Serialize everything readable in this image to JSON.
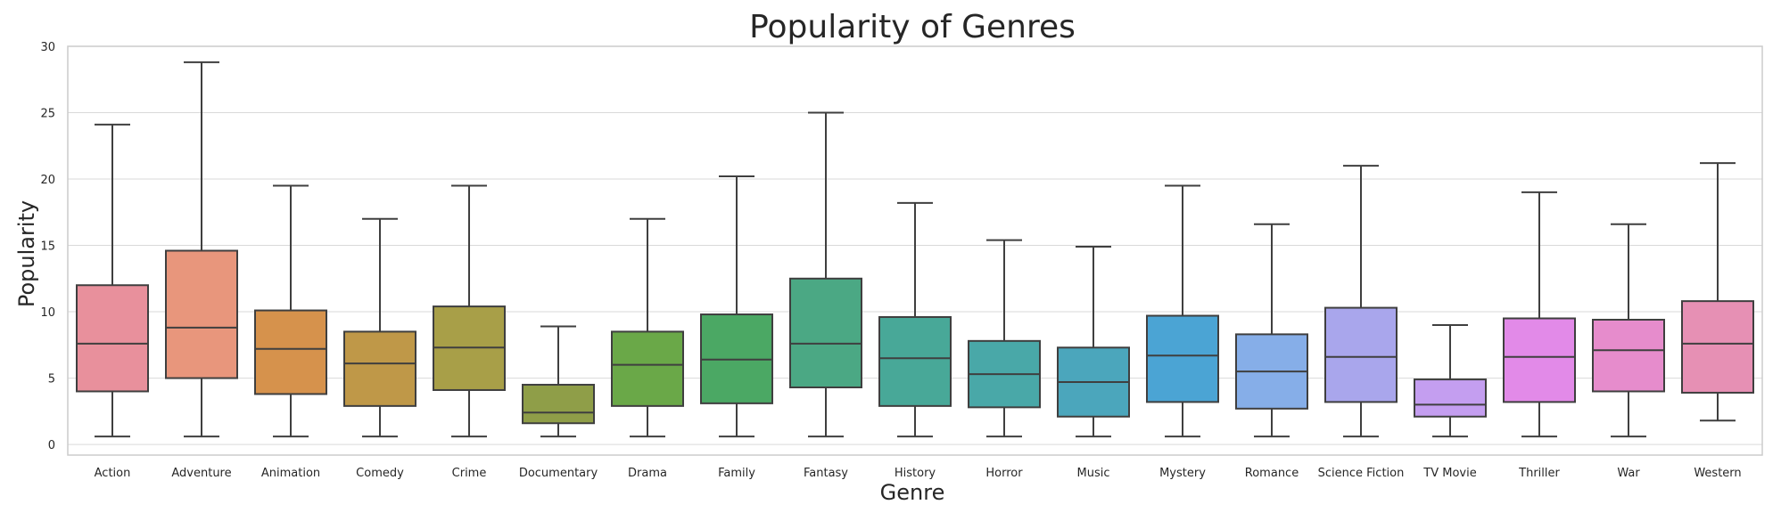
{
  "chart_data": {
    "type": "box",
    "title": "Popularity of Genres",
    "xlabel": "Genre",
    "ylabel": "Popularity",
    "ylim": [
      -0.8,
      30.0
    ],
    "yticks": [
      0,
      5,
      10,
      15,
      20,
      25,
      30
    ],
    "grid": true,
    "categories": [
      "Action",
      "Adventure",
      "Animation",
      "Comedy",
      "Crime",
      "Documentary",
      "Drama",
      "Family",
      "Fantasy",
      "History",
      "Horror",
      "Music",
      "Mystery",
      "Romance",
      "Science Fiction",
      "TV Movie",
      "Thriller",
      "War",
      "Western"
    ],
    "boxes": [
      {
        "whisker_low": 0.6,
        "q1": 4.0,
        "median": 7.6,
        "q3": 12.0,
        "whisker_high": 24.1
      },
      {
        "whisker_low": 0.6,
        "q1": 5.0,
        "median": 8.8,
        "q3": 14.6,
        "whisker_high": 28.8
      },
      {
        "whisker_low": 0.6,
        "q1": 3.8,
        "median": 7.2,
        "q3": 10.1,
        "whisker_high": 19.5
      },
      {
        "whisker_low": 0.6,
        "q1": 2.9,
        "median": 6.1,
        "q3": 8.5,
        "whisker_high": 17.0
      },
      {
        "whisker_low": 0.6,
        "q1": 4.1,
        "median": 7.3,
        "q3": 10.4,
        "whisker_high": 19.5
      },
      {
        "whisker_low": 0.6,
        "q1": 1.6,
        "median": 2.4,
        "q3": 4.5,
        "whisker_high": 8.9
      },
      {
        "whisker_low": 0.6,
        "q1": 2.9,
        "median": 6.0,
        "q3": 8.5,
        "whisker_high": 17.0
      },
      {
        "whisker_low": 0.6,
        "q1": 3.1,
        "median": 6.4,
        "q3": 9.8,
        "whisker_high": 20.2
      },
      {
        "whisker_low": 0.6,
        "q1": 4.3,
        "median": 7.6,
        "q3": 12.5,
        "whisker_high": 25.0
      },
      {
        "whisker_low": 0.6,
        "q1": 2.9,
        "median": 6.5,
        "q3": 9.6,
        "whisker_high": 18.2
      },
      {
        "whisker_low": 0.6,
        "q1": 2.8,
        "median": 5.3,
        "q3": 7.8,
        "whisker_high": 15.4
      },
      {
        "whisker_low": 0.6,
        "q1": 2.1,
        "median": 4.7,
        "q3": 7.3,
        "whisker_high": 14.9
      },
      {
        "whisker_low": 0.6,
        "q1": 3.2,
        "median": 6.7,
        "q3": 9.7,
        "whisker_high": 19.5
      },
      {
        "whisker_low": 0.6,
        "q1": 2.7,
        "median": 5.5,
        "q3": 8.3,
        "whisker_high": 16.6
      },
      {
        "whisker_low": 0.6,
        "q1": 3.2,
        "median": 6.6,
        "q3": 10.3,
        "whisker_high": 21.0
      },
      {
        "whisker_low": 0.6,
        "q1": 2.1,
        "median": 3.0,
        "q3": 4.9,
        "whisker_high": 9.0
      },
      {
        "whisker_low": 0.6,
        "q1": 3.2,
        "median": 6.6,
        "q3": 9.5,
        "whisker_high": 19.0
      },
      {
        "whisker_low": 0.6,
        "q1": 4.0,
        "median": 7.1,
        "q3": 9.4,
        "whisker_high": 16.6
      },
      {
        "whisker_low": 1.8,
        "q1": 3.9,
        "median": 7.6,
        "q3": 10.8,
        "whisker_high": 21.2
      }
    ],
    "colors": [
      "#e8909c",
      "#e8967c",
      "#d6924c",
      "#bf9848",
      "#a89f48",
      "#8f9e48",
      "#6aa848",
      "#4ba864",
      "#4ba884",
      "#48a898",
      "#49a8a8",
      "#4ba6bc",
      "#4ba4d4",
      "#86aee8",
      "#a9a6ec",
      "#c49ef0",
      "#e28ae8",
      "#e68ccc",
      "#e690b4"
    ]
  }
}
